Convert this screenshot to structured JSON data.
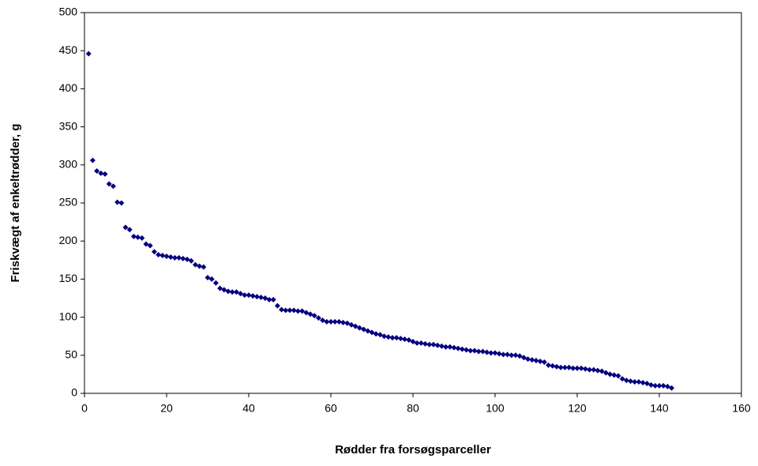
{
  "chart_data": {
    "type": "scatter",
    "x_label": "Rødder fra forsøgsparceller",
    "y_label": "Friskvægt af enkeltrødder, g",
    "x": [
      1,
      2,
      3,
      4,
      5,
      6,
      7,
      8,
      9,
      10,
      11,
      12,
      13,
      14,
      15,
      16,
      17,
      18,
      19,
      20,
      21,
      22,
      23,
      24,
      25,
      26,
      27,
      28,
      29,
      30,
      31,
      32,
      33,
      34,
      35,
      36,
      37,
      38,
      39,
      40,
      41,
      42,
      43,
      44,
      45,
      46,
      47,
      48,
      49,
      50,
      51,
      52,
      53,
      54,
      55,
      56,
      57,
      58,
      59,
      60,
      61,
      62,
      63,
      64,
      65,
      66,
      67,
      68,
      69,
      70,
      71,
      72,
      73,
      74,
      75,
      76,
      77,
      78,
      79,
      80,
      81,
      82,
      83,
      84,
      85,
      86,
      87,
      88,
      89,
      90,
      91,
      92,
      93,
      94,
      95,
      96,
      97,
      98,
      99,
      100,
      101,
      102,
      103,
      104,
      105,
      106,
      107,
      108,
      109,
      110,
      111,
      112,
      113,
      114,
      115,
      116,
      117,
      118,
      119,
      120,
      121,
      122,
      123,
      124,
      125,
      126,
      127,
      128,
      129,
      130,
      131,
      132,
      133,
      134,
      135,
      136,
      137,
      138,
      139,
      140,
      141,
      142,
      143
    ],
    "values": [
      446,
      306,
      292,
      289,
      288,
      275,
      272,
      251,
      250,
      218,
      215,
      206,
      205,
      204,
      196,
      194,
      186,
      182,
      181,
      180,
      179,
      178,
      178,
      177,
      176,
      174,
      169,
      167,
      166,
      152,
      150,
      145,
      138,
      136,
      134,
      133,
      133,
      131,
      129,
      129,
      128,
      127,
      126,
      125,
      123,
      123,
      115,
      110,
      109,
      109,
      109,
      108,
      108,
      106,
      104,
      102,
      99,
      96,
      94,
      94,
      94,
      94,
      93,
      92,
      90,
      88,
      86,
      84,
      82,
      80,
      78,
      77,
      75,
      74,
      73,
      73,
      72,
      71,
      70,
      68,
      66,
      66,
      65,
      64,
      64,
      63,
      62,
      61,
      61,
      60,
      59,
      58,
      57,
      56,
      56,
      55,
      55,
      54,
      53,
      53,
      52,
      51,
      51,
      50,
      50,
      49,
      47,
      45,
      44,
      43,
      42,
      41,
      37,
      36,
      35,
      34,
      34,
      34,
      33,
      33,
      33,
      32,
      31,
      31,
      30,
      29,
      27,
      25,
      24,
      23,
      19,
      17,
      16,
      15,
      15,
      14,
      13,
      11,
      10,
      10,
      10,
      9,
      7
    ],
    "color": "#000080",
    "xlim": [
      0,
      160
    ],
    "xticks": [
      0,
      20,
      40,
      60,
      80,
      100,
      120,
      140,
      160
    ],
    "ylim": [
      0,
      500
    ],
    "yticks": [
      0,
      50,
      100,
      150,
      200,
      250,
      300,
      350,
      400,
      450,
      500
    ]
  }
}
